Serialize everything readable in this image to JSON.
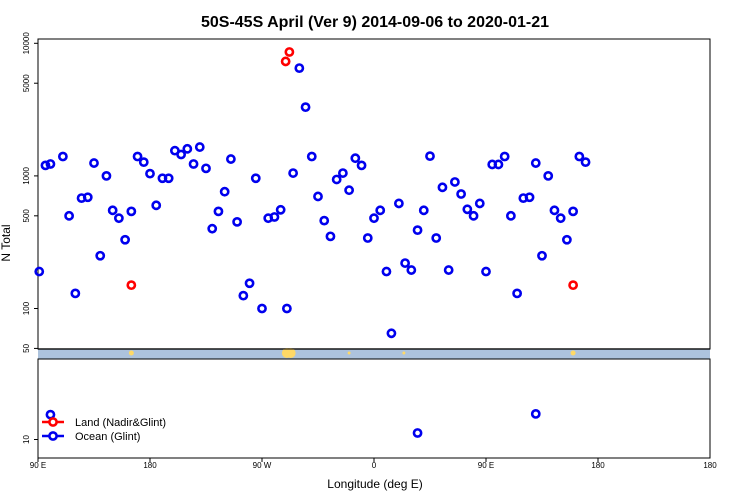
{
  "chart_data": {
    "type": "scatter",
    "title": "50S-45S April (Ver 9)   2014-09-06 to 2020-01-21",
    "xlabel": "Longitude (deg E)",
    "ylabel": "N Total",
    "y_scale": "log",
    "xlim": [
      -90,
      180
    ],
    "x_ticks": [
      {
        "value": -90,
        "label": "90 E"
      },
      {
        "value": -45,
        "label": "180"
      },
      {
        "value": 0,
        "label": "90 W"
      },
      {
        "value": 45,
        "label": "0"
      },
      {
        "value": 90,
        "label": "90 E"
      },
      {
        "value": 135,
        "label": "180"
      }
    ],
    "y_ticks_upper": [
      "10000",
      "5000",
      "1000",
      "500",
      "100",
      "50"
    ],
    "y_ticks_lower": [
      "10"
    ],
    "split_value": 50,
    "legend": {
      "position": "bottom-left",
      "entries": [
        {
          "label": "Land (Nadir&Glint)",
          "color": "#ff0000"
        },
        {
          "label": "Ocean (Glint)",
          "color": "#0000ee"
        }
      ]
    },
    "series": [
      {
        "name": "Ocean (Glint)",
        "color": "#0000ee",
        "points": [
          [
            -89.5,
            190
          ],
          [
            -87,
            1200
          ],
          [
            -85,
            1230
          ],
          [
            -80,
            1400
          ],
          [
            -77.5,
            500
          ],
          [
            -75,
            130
          ],
          [
            -72.5,
            680
          ],
          [
            -70,
            690
          ],
          [
            -67.5,
            1250
          ],
          [
            -65,
            250
          ],
          [
            -62.5,
            1000
          ],
          [
            -60,
            550
          ],
          [
            -57.5,
            480
          ],
          [
            -55,
            330
          ],
          [
            -52.5,
            540
          ],
          [
            -50,
            1400
          ],
          [
            -47.5,
            1270
          ],
          [
            -45,
            1040
          ],
          [
            -42.5,
            600
          ],
          [
            -40,
            960
          ],
          [
            -37.5,
            960
          ],
          [
            -35,
            1550
          ],
          [
            -32.5,
            1450
          ],
          [
            -30,
            1600
          ],
          [
            -27.5,
            1230
          ],
          [
            -25,
            1650
          ],
          [
            -22.5,
            1140
          ],
          [
            -20,
            400
          ],
          [
            -17.5,
            540
          ],
          [
            -15,
            760
          ],
          [
            -12.5,
            1340
          ],
          [
            -10,
            450
          ],
          [
            -7.5,
            125
          ],
          [
            -2.5,
            960
          ],
          [
            -5,
            155
          ],
          [
            0,
            100
          ],
          [
            5,
            490
          ],
          [
            2.5,
            480
          ],
          [
            7.5,
            555
          ],
          [
            10,
            100
          ],
          [
            12.5,
            1050
          ],
          [
            15,
            6500
          ],
          [
            17.5,
            3300
          ],
          [
            20,
            1400
          ],
          [
            22.5,
            700
          ],
          [
            25,
            460
          ],
          [
            27.5,
            350
          ],
          [
            30,
            940
          ],
          [
            32.5,
            1050
          ],
          [
            35,
            780
          ],
          [
            37.5,
            1360
          ],
          [
            40,
            1200
          ],
          [
            42.5,
            340
          ],
          [
            45,
            480
          ],
          [
            47.5,
            550
          ],
          [
            50,
            190
          ],
          [
            52,
            65
          ],
          [
            55,
            620
          ],
          [
            57.5,
            220
          ],
          [
            60,
            195
          ],
          [
            62.5,
            390
          ],
          [
            65,
            550
          ],
          [
            67.5,
            1410
          ],
          [
            70,
            340
          ],
          [
            72.5,
            820
          ],
          [
            75,
            195
          ],
          [
            77.5,
            900
          ],
          [
            80,
            730
          ],
          [
            82.5,
            560
          ],
          [
            85,
            500
          ],
          [
            87.5,
            620
          ],
          [
            90,
            190
          ],
          [
            92.5,
            1220
          ],
          [
            95,
            1220
          ],
          [
            97.5,
            1400
          ],
          [
            100,
            500
          ],
          [
            102.5,
            130
          ],
          [
            105,
            680
          ],
          [
            107.5,
            690
          ],
          [
            110,
            1250
          ],
          [
            112.5,
            250
          ],
          [
            115,
            1000
          ],
          [
            117.5,
            550
          ],
          [
            120,
            480
          ],
          [
            122.5,
            330
          ],
          [
            125,
            540
          ],
          [
            127.5,
            1400
          ],
          [
            130,
            1270
          ],
          [
            -85,
            15.4
          ],
          [
            62.5,
            11.2
          ],
          [
            110,
            15.6
          ]
        ]
      },
      {
        "name": "Land (Nadir&Glint)",
        "color": "#ff0000",
        "points": [
          [
            -52.5,
            150
          ],
          [
            9.5,
            7300
          ],
          [
            11,
            8600
          ],
          [
            125,
            150
          ]
        ]
      }
    ]
  }
}
